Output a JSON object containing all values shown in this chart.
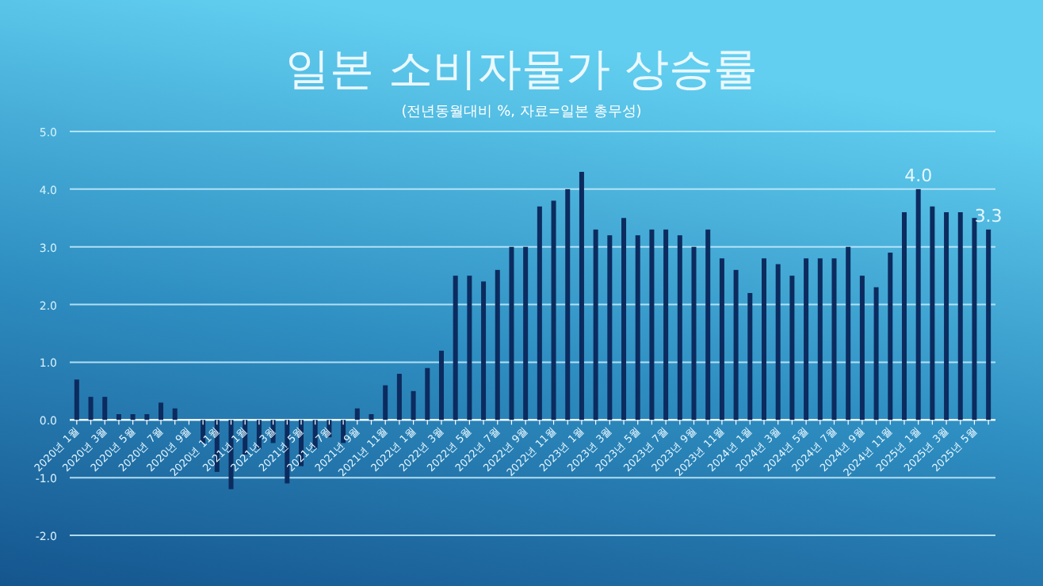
{
  "chart_data": {
    "type": "bar",
    "title": "일본 소비자물가 상승률",
    "subtitle": "(전년동월대비 %, 자료=일본 총무성)",
    "categories": [
      "2020년 1월",
      null,
      "2020년 3월",
      null,
      "2020년 5월",
      null,
      "2020년 7월",
      null,
      "2020년 9월",
      null,
      "2020년 11월",
      null,
      "2021년 1월",
      null,
      "2021년 3월",
      null,
      "2021년 5월",
      null,
      "2021년 7월",
      null,
      "2021년 9월",
      null,
      "2021년 11월",
      null,
      "2022년 1월",
      null,
      "2022년 3월",
      null,
      "2022년 5월",
      null,
      "2022년 7월",
      null,
      "2022년 9월",
      null,
      "2022년 11월",
      null,
      "2023년 1월",
      null,
      "2023년 3월",
      null,
      "2023년 5월",
      null,
      "2023년 7월",
      null,
      "2023년 9월",
      null,
      "2023년 11월",
      null,
      "2024년 1월",
      null,
      "2024년 3월",
      null,
      "2024년 5월",
      null,
      "2024년 7월",
      null,
      "2024년 9월",
      null,
      "2024년 11월",
      null,
      "2025년 1월",
      null,
      "2025년 3월",
      null,
      "2025년 5월",
      null
    ],
    "values": [
      0.7,
      0.4,
      0.4,
      0.1,
      0.1,
      0.1,
      0.3,
      0.2,
      0.0,
      -0.4,
      -0.9,
      -1.2,
      -0.6,
      -0.5,
      -0.4,
      -1.1,
      -0.8,
      -0.5,
      -0.3,
      -0.4,
      0.2,
      0.1,
      0.6,
      0.8,
      0.5,
      0.9,
      1.2,
      2.5,
      2.5,
      2.4,
      2.6,
      3.0,
      3.0,
      3.7,
      3.8,
      4.0,
      4.3,
      3.3,
      3.2,
      3.5,
      3.2,
      3.3,
      3.3,
      3.2,
      3.0,
      3.3,
      2.8,
      2.6,
      2.2,
      2.8,
      2.7,
      2.5,
      2.8,
      2.8,
      2.8,
      3.0,
      2.5,
      2.3,
      2.9,
      3.6,
      4.0,
      3.7,
      3.6,
      3.6,
      3.5,
      3.3
    ],
    "value_labels": [
      null,
      null,
      null,
      null,
      null,
      null,
      null,
      null,
      null,
      null,
      null,
      null,
      null,
      null,
      null,
      null,
      null,
      null,
      null,
      null,
      null,
      null,
      null,
      null,
      null,
      null,
      null,
      null,
      null,
      null,
      null,
      null,
      null,
      null,
      null,
      null,
      null,
      null,
      null,
      null,
      null,
      null,
      null,
      null,
      null,
      null,
      null,
      null,
      null,
      null,
      null,
      null,
      null,
      null,
      null,
      null,
      null,
      null,
      null,
      null,
      "4.0",
      null,
      null,
      null,
      null,
      "3.3"
    ],
    "color": "#0c2b5e",
    "ylim": [
      -2,
      5
    ],
    "yticks": [
      {
        "value": 5,
        "label": "5.0"
      },
      {
        "value": 4,
        "label": "4.0"
      },
      {
        "value": 3,
        "label": "3.0"
      },
      {
        "value": 2,
        "label": "2.0"
      },
      {
        "value": 1,
        "label": "1.0"
      },
      {
        "value": 0,
        "label": "0.0"
      },
      {
        "value": -1,
        "label": "-1.0"
      },
      {
        "value": -2,
        "label": "-2.0"
      }
    ],
    "grid": "y"
  }
}
